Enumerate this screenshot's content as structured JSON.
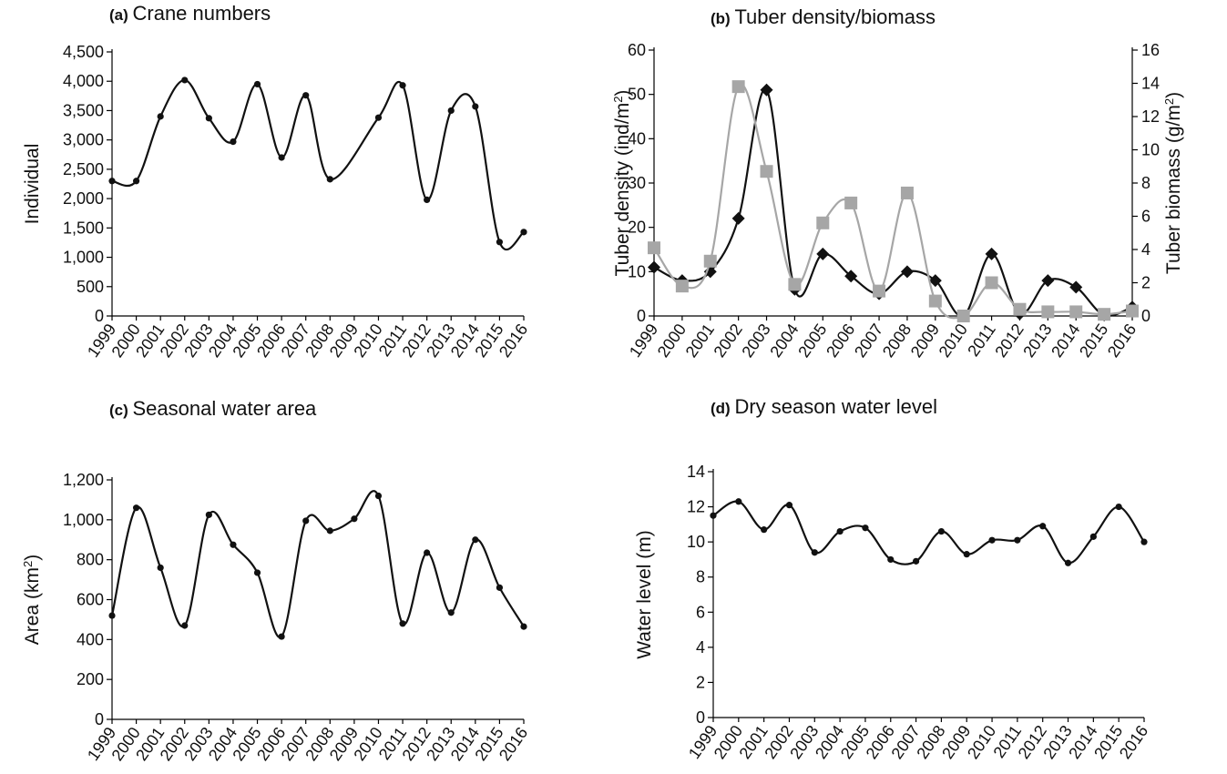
{
  "chart_data": [
    {
      "id": "a",
      "type": "line",
      "panel_label": "(a)",
      "title": "Crane numbers",
      "ylabel": "Individual",
      "ylim": [
        0,
        4500
      ],
      "yticks": [
        0,
        500,
        1000,
        1500,
        2000,
        2500,
        3000,
        3500,
        4000,
        4500
      ],
      "ytick_labels": [
        "0",
        "500",
        "1,000",
        "1,500",
        "2,000",
        "2,500",
        "3,000",
        "3,500",
        "4,000",
        "4,500"
      ],
      "x": [
        "1999",
        "2000",
        "2001",
        "2002",
        "2003",
        "2004",
        "2005",
        "2006",
        "2007",
        "2008",
        "2009",
        "2010",
        "2011",
        "2012",
        "2013",
        "2014",
        "2015",
        "2016"
      ],
      "series": [
        {
          "marker": "circle",
          "color": "#111111",
          "values": [
            2300,
            2300,
            3400,
            4020,
            3370,
            2970,
            3950,
            2700,
            3760,
            2330,
            null,
            3380,
            3930,
            1980,
            3500,
            3570,
            1260,
            1430
          ]
        }
      ]
    },
    {
      "id": "b",
      "type": "line",
      "panel_label": "(b)",
      "title": "Tuber density/biomass",
      "ylabel": "Tuber density  (ind/m²)",
      "y2label": "Tuber biomass  (g/m²)",
      "ylim": [
        0,
        60
      ],
      "yticks": [
        0,
        10,
        20,
        30,
        40,
        50,
        60
      ],
      "ytick_labels": [
        "0",
        "10",
        "20",
        "30",
        "40",
        "50",
        "60"
      ],
      "y2lim": [
        0,
        16
      ],
      "y2ticks": [
        0,
        2,
        4,
        6,
        8,
        10,
        12,
        14,
        16
      ],
      "y2tick_labels": [
        "0",
        "2",
        "4",
        "6",
        "8",
        "10",
        "12",
        "14",
        "16"
      ],
      "x": [
        "1999",
        "2000",
        "2001",
        "2002",
        "2003",
        "2004",
        "2005",
        "2006",
        "2007",
        "2008",
        "2009",
        "2010",
        "2011",
        "2012",
        "2013",
        "2014",
        "2015",
        "2016"
      ],
      "series": [
        {
          "marker": "diamond",
          "color": "#111111",
          "axis": "left",
          "values": [
            11,
            8,
            10,
            22,
            51,
            6,
            14,
            9,
            5,
            10,
            8,
            0,
            14,
            0.5,
            8,
            6.5,
            0.2,
            2
          ]
        },
        {
          "marker": "square",
          "color": "#a6a6a6",
          "axis": "right",
          "values": [
            4.1,
            1.8,
            3.3,
            13.8,
            8.7,
            1.9,
            5.6,
            6.8,
            1.5,
            7.4,
            0.9,
            0,
            2.0,
            0.4,
            0.25,
            0.25,
            0.1,
            0.3
          ]
        }
      ]
    },
    {
      "id": "c",
      "type": "line",
      "panel_label": "(c)",
      "title": "Seasonal water area",
      "ylabel": "Area (km²)",
      "ylim": [
        0,
        1200
      ],
      "yticks": [
        0,
        200,
        400,
        600,
        800,
        1000,
        1200
      ],
      "ytick_labels": [
        "0",
        "200",
        "400",
        "600",
        "800",
        "1,000",
        "1,200"
      ],
      "x": [
        "1999",
        "2000",
        "2001",
        "2002",
        "2003",
        "2004",
        "2005",
        "2006",
        "2007",
        "2008",
        "2009",
        "2010",
        "2011",
        "2012",
        "2013",
        "2014",
        "2015",
        "2016"
      ],
      "series": [
        {
          "marker": "circle",
          "color": "#111111",
          "values": [
            520,
            1060,
            760,
            470,
            1025,
            875,
            735,
            415,
            995,
            945,
            1005,
            1120,
            480,
            835,
            535,
            900,
            660,
            465
          ]
        }
      ]
    },
    {
      "id": "d",
      "type": "line",
      "panel_label": "(d)",
      "title": "Dry season water level",
      "ylabel": "Water level (m)",
      "ylim": [
        0,
        14
      ],
      "yticks": [
        0,
        2,
        4,
        6,
        8,
        10,
        12,
        14
      ],
      "ytick_labels": [
        "0",
        "2",
        "4",
        "6",
        "8",
        "10",
        "12",
        "14"
      ],
      "x": [
        "1999",
        "2000",
        "2001",
        "2002",
        "2003",
        "2004",
        "2005",
        "2006",
        "2007",
        "2008",
        "2009",
        "2010",
        "2011",
        "2012",
        "2013",
        "2014",
        "2015",
        "2016"
      ],
      "series": [
        {
          "marker": "circle",
          "color": "#111111",
          "values": [
            11.5,
            12.3,
            10.7,
            12.1,
            9.4,
            10.6,
            10.8,
            9.0,
            8.9,
            10.6,
            9.3,
            10.1,
            10.1,
            10.9,
            8.8,
            10.3,
            12.0,
            10.0
          ]
        }
      ]
    }
  ]
}
